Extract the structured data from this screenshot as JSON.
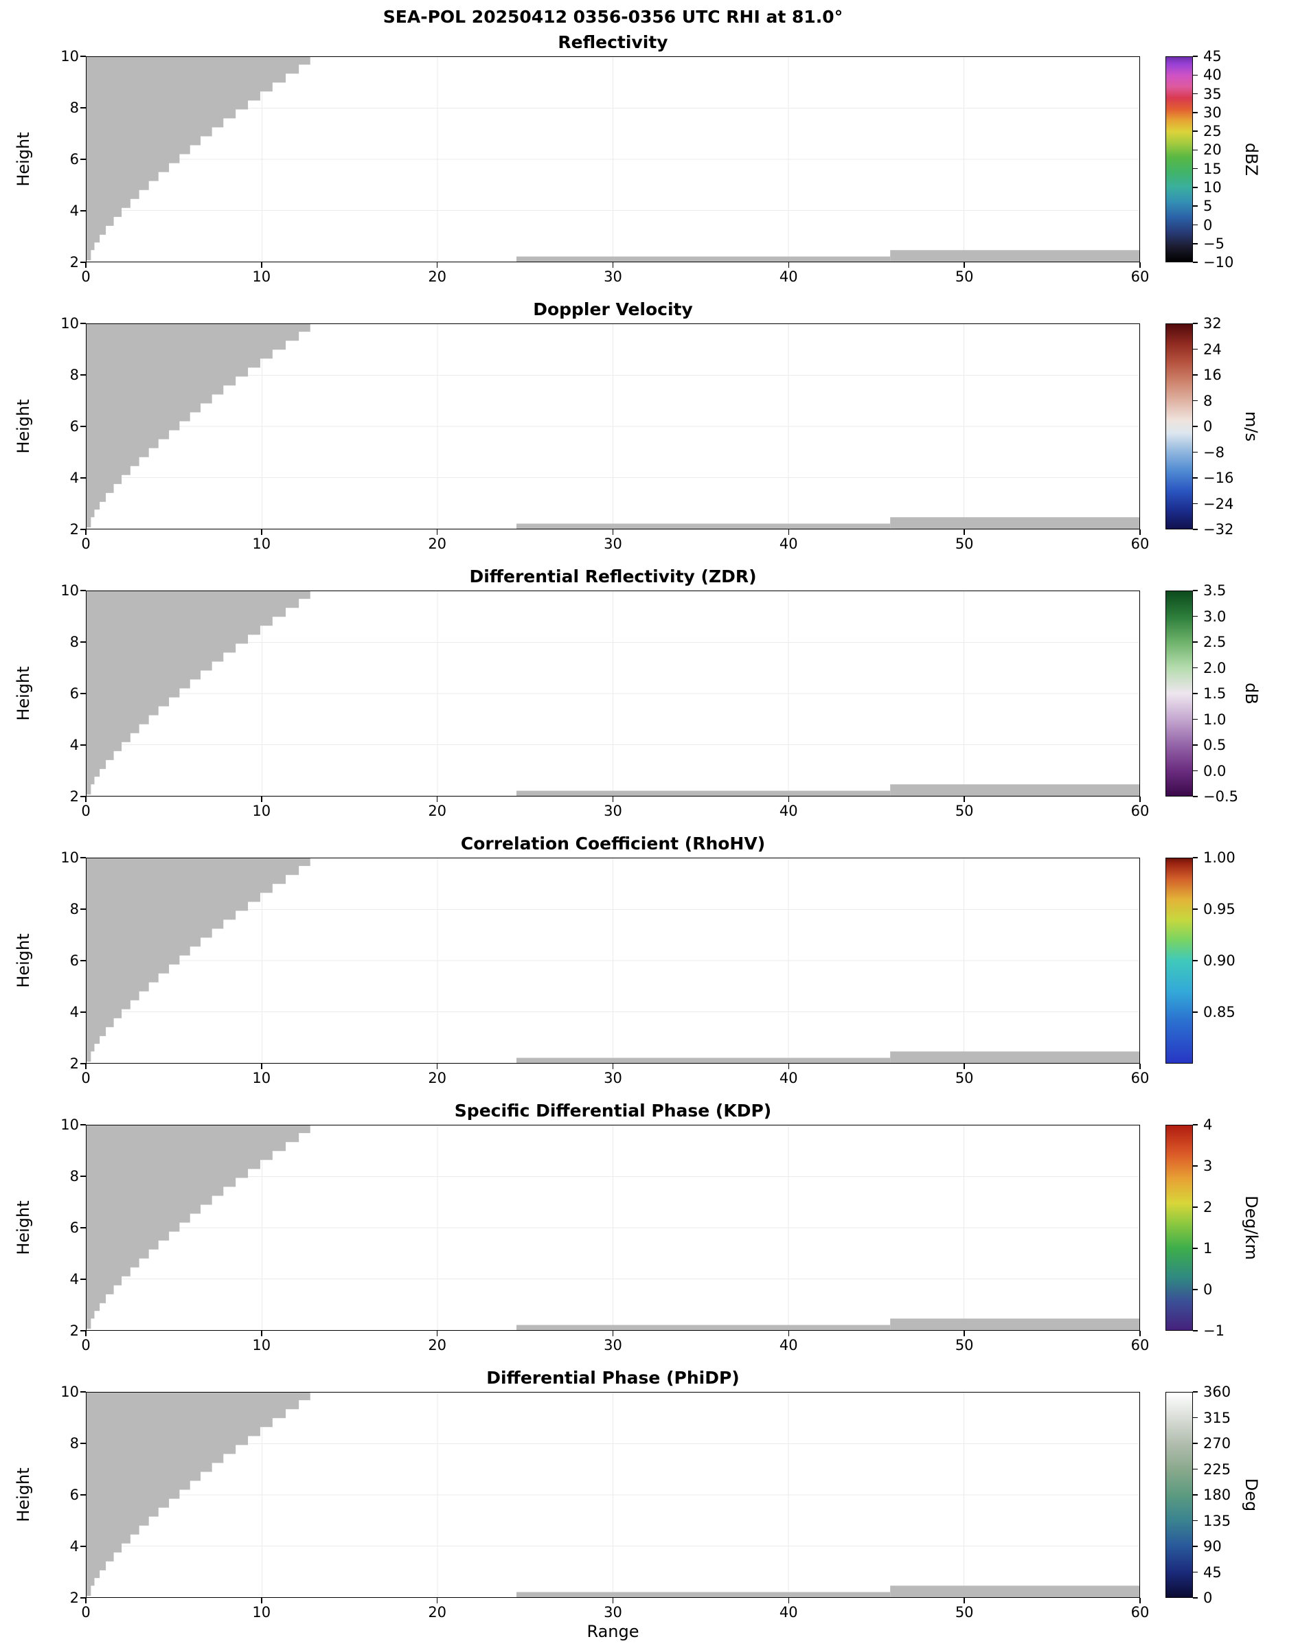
{
  "chart_data": {
    "type": "heatmap",
    "title": "SEA-POL 20250412 0356-0356 UTC RHI at 81.0°",
    "xlabel": "Range",
    "ylabel": "Height",
    "xlim": [
      0,
      60
    ],
    "ylim": [
      2,
      10
    ],
    "x_ticks": [
      0,
      10,
      20,
      30,
      40,
      50,
      60
    ],
    "y_ticks": [
      10,
      8,
      6,
      4,
      2
    ],
    "grid": true,
    "masked_color": "#b9b9b9",
    "masked_regions": {
      "wedge_boundary": [
        [
          0.15,
          2.05
        ],
        [
          0.25,
          2.45
        ],
        [
          0.45,
          2.75
        ],
        [
          0.75,
          3.05
        ],
        [
          1.1,
          3.4
        ],
        [
          1.55,
          3.75
        ],
        [
          2.0,
          4.1
        ],
        [
          2.5,
          4.45
        ],
        [
          3.0,
          4.8
        ],
        [
          3.55,
          5.15
        ],
        [
          4.1,
          5.5
        ],
        [
          4.7,
          5.85
        ],
        [
          5.3,
          6.2
        ],
        [
          5.9,
          6.55
        ],
        [
          6.5,
          6.9
        ],
        [
          7.15,
          7.25
        ],
        [
          7.8,
          7.6
        ],
        [
          8.5,
          7.95
        ],
        [
          9.2,
          8.3
        ],
        [
          9.9,
          8.65
        ],
        [
          10.6,
          9.0
        ],
        [
          11.35,
          9.35
        ],
        [
          12.1,
          9.7
        ],
        [
          12.75,
          10.0
        ]
      ],
      "strips": [
        {
          "x0": 24.5,
          "x1": 45.8,
          "y0": 2.0,
          "y1": 2.2
        },
        {
          "x0": 45.8,
          "x1": 60.0,
          "y0": 2.0,
          "y1": 2.45
        }
      ]
    },
    "panels": [
      {
        "title": "Reflectivity",
        "unit": "dBZ",
        "cb_min": -10,
        "cb_max": 45,
        "cb_tick_labels": [
          "45",
          "40",
          "35",
          "30",
          "25",
          "20",
          "15",
          "10",
          "5",
          "0",
          "−5",
          "−10"
        ],
        "cb_tick_values": [
          45,
          40,
          35,
          30,
          25,
          20,
          15,
          10,
          5,
          0,
          -5,
          -10
        ],
        "gradient": [
          {
            "v": -10,
            "c": "#000000"
          },
          {
            "v": -6,
            "c": "#1c1c30"
          },
          {
            "v": -2,
            "c": "#273c78"
          },
          {
            "v": 2,
            "c": "#2b62a8"
          },
          {
            "v": 6,
            "c": "#338fb4"
          },
          {
            "v": 10,
            "c": "#3aaf9e"
          },
          {
            "v": 14,
            "c": "#41b36a"
          },
          {
            "v": 18,
            "c": "#57b844"
          },
          {
            "v": 22,
            "c": "#a8cc3e"
          },
          {
            "v": 25,
            "c": "#ddd33a"
          },
          {
            "v": 28,
            "c": "#e6a333"
          },
          {
            "v": 31,
            "c": "#e25e31"
          },
          {
            "v": 34,
            "c": "#d93a50"
          },
          {
            "v": 37,
            "c": "#de5a9e"
          },
          {
            "v": 40,
            "c": "#cf53c4"
          },
          {
            "v": 43,
            "c": "#9a41d6"
          },
          {
            "v": 45,
            "c": "#6f2fae"
          }
        ]
      },
      {
        "title": "Doppler Velocity",
        "unit": "m/s",
        "cb_min": -32,
        "cb_max": 32,
        "cb_tick_labels": [
          "32",
          "24",
          "16",
          "8",
          "0",
          "−8",
          "−16",
          "−24",
          "−32"
        ],
        "cb_tick_values": [
          32,
          24,
          16,
          8,
          0,
          -8,
          -16,
          -24,
          -32
        ],
        "gradient": [
          {
            "v": -32,
            "c": "#11114e"
          },
          {
            "v": -26,
            "c": "#1b2e8f"
          },
          {
            "v": -20,
            "c": "#2b57c2"
          },
          {
            "v": -14,
            "c": "#4f8ad2"
          },
          {
            "v": -8,
            "c": "#8fb6de"
          },
          {
            "v": -2,
            "c": "#dde7ee"
          },
          {
            "v": 2,
            "c": "#efe3dd"
          },
          {
            "v": 8,
            "c": "#dfb3a3"
          },
          {
            "v": 14,
            "c": "#cd836c"
          },
          {
            "v": 20,
            "c": "#b5533f"
          },
          {
            "v": 26,
            "c": "#8f2a20"
          },
          {
            "v": 32,
            "c": "#520a0c"
          }
        ]
      },
      {
        "title": "Differential Reflectivity (ZDR)",
        "unit": "dB",
        "cb_min": -0.5,
        "cb_max": 3.5,
        "cb_tick_labels": [
          "3.5",
          "3.0",
          "2.5",
          "2.0",
          "1.5",
          "1.0",
          "0.5",
          "0.0",
          "−0.5"
        ],
        "cb_tick_values": [
          3.5,
          3.0,
          2.5,
          2.0,
          1.5,
          1.0,
          0.5,
          0.0,
          -0.5
        ],
        "gradient": [
          {
            "v": -0.5,
            "c": "#3b094a"
          },
          {
            "v": 0,
            "c": "#6b2d80"
          },
          {
            "v": 0.5,
            "c": "#9465a8"
          },
          {
            "v": 1.0,
            "c": "#c5a8d0"
          },
          {
            "v": 1.5,
            "c": "#eee6ef"
          },
          {
            "v": 2.0,
            "c": "#b5dcae"
          },
          {
            "v": 2.5,
            "c": "#6fb36c"
          },
          {
            "v": 3.0,
            "c": "#2d7e3b"
          },
          {
            "v": 3.5,
            "c": "#0c4a1d"
          }
        ]
      },
      {
        "title": "Correlation Coefficient (RhoHV)",
        "unit": "",
        "cb_min": 0.8,
        "cb_max": 1.0,
        "cb_tick_labels": [
          "1.00",
          "0.95",
          "0.90",
          "0.85"
        ],
        "cb_tick_values": [
          1.0,
          0.95,
          0.9,
          0.85
        ],
        "gradient": [
          {
            "v": 0.8,
            "c": "#2736c4"
          },
          {
            "v": 0.84,
            "c": "#2b6fd0"
          },
          {
            "v": 0.87,
            "c": "#33a9d8"
          },
          {
            "v": 0.9,
            "c": "#3fc9bb"
          },
          {
            "v": 0.92,
            "c": "#79d463"
          },
          {
            "v": 0.94,
            "c": "#c6d83e"
          },
          {
            "v": 0.96,
            "c": "#e3b338"
          },
          {
            "v": 0.98,
            "c": "#d25f2a"
          },
          {
            "v": 0.995,
            "c": "#9c2412"
          },
          {
            "v": 1.0,
            "c": "#6b140a"
          }
        ]
      },
      {
        "title": "Specific Differential Phase (KDP)",
        "unit": "Deg/km",
        "cb_min": -1,
        "cb_max": 4,
        "cb_tick_labels": [
          "4",
          "3",
          "2",
          "1",
          "0",
          "−1"
        ],
        "cb_tick_values": [
          4,
          3,
          2,
          1,
          0,
          -1
        ],
        "gradient": [
          {
            "v": -1,
            "c": "#45217c"
          },
          {
            "v": -0.3,
            "c": "#3b4f97"
          },
          {
            "v": 0.3,
            "c": "#2f8a80"
          },
          {
            "v": 1.0,
            "c": "#3dae4b"
          },
          {
            "v": 1.6,
            "c": "#8cc83f"
          },
          {
            "v": 2.1,
            "c": "#d8d639"
          },
          {
            "v": 2.7,
            "c": "#e7a134"
          },
          {
            "v": 3.3,
            "c": "#dc5a28"
          },
          {
            "v": 4,
            "c": "#b01c10"
          }
        ]
      },
      {
        "title": "Differential Phase (PhiDP)",
        "unit": "Deg",
        "cb_min": 0,
        "cb_max": 360,
        "cb_tick_labels": [
          "360",
          "315",
          "270",
          "225",
          "180",
          "135",
          "90",
          "45",
          "0"
        ],
        "cb_tick_values": [
          360,
          315,
          270,
          225,
          180,
          135,
          90,
          45,
          0
        ],
        "gradient": [
          {
            "v": 0,
            "c": "#0b0b32"
          },
          {
            "v": 45,
            "c": "#1b2b7c"
          },
          {
            "v": 90,
            "c": "#29599b"
          },
          {
            "v": 135,
            "c": "#3a8390"
          },
          {
            "v": 180,
            "c": "#5c9b80"
          },
          {
            "v": 225,
            "c": "#8aa98c"
          },
          {
            "v": 270,
            "c": "#b1bdae"
          },
          {
            "v": 315,
            "c": "#d9ddd7"
          },
          {
            "v": 360,
            "c": "#ffffff"
          }
        ]
      }
    ]
  }
}
